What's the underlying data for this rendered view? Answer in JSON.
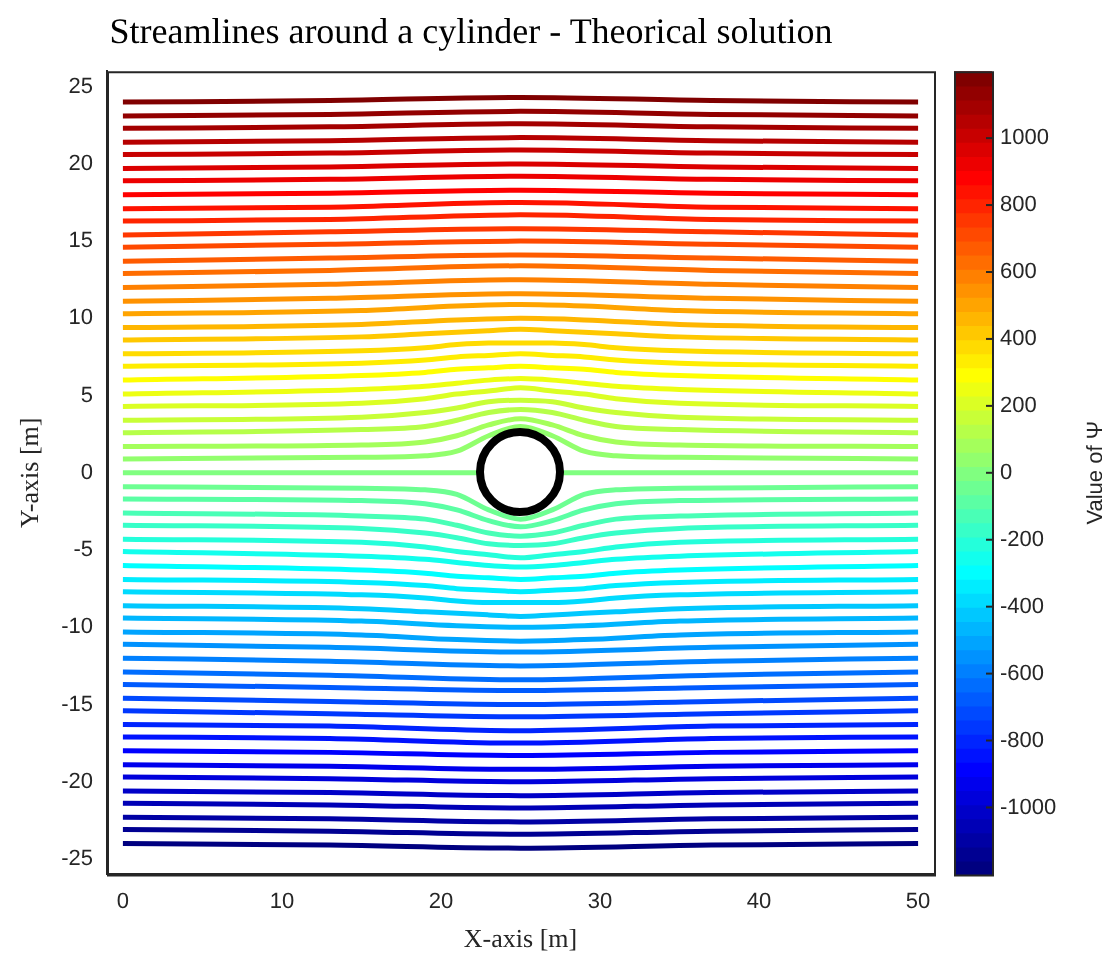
{
  "chart_data": {
    "type": "line",
    "title": "Streamlines around a cylinder - Theorical solution",
    "xlabel": "X-axis [m]",
    "ylabel": "Y-axis [m]",
    "clabel": "Value of Ψ",
    "clim": [
      -1200,
      1200
    ],
    "cticks": [
      -1000,
      -800,
      -600,
      -400,
      -200,
      0,
      200,
      400,
      600,
      800,
      1000
    ],
    "xlim": [
      -1,
      51
    ],
    "ylim": [
      -26,
      26
    ],
    "xticks": [
      0,
      10,
      20,
      30,
      40,
      50
    ],
    "yticks": [
      -25,
      -20,
      -15,
      -10,
      -5,
      0,
      5,
      10,
      15,
      20,
      25
    ],
    "legend": false,
    "grid": false,
    "series": [
      {
        "color": "#000080",
        "x": [
          0,
          13,
          25,
          37,
          50
        ],
        "values": [
          -24,
          -24.1,
          -24.3,
          -24.1,
          -24
        ]
      },
      {
        "color": "#000092",
        "x": [
          0,
          13,
          25,
          37,
          50
        ],
        "values": [
          -23.1,
          -23.2,
          -23.4,
          -23.2,
          -23.1
        ]
      },
      {
        "color": "#0000a4",
        "x": [
          0,
          13,
          25,
          37,
          50
        ],
        "values": [
          -22.3,
          -22.4,
          -22.6,
          -22.4,
          -22.3
        ]
      },
      {
        "color": "#0000b6",
        "x": [
          0,
          13,
          25,
          37,
          50
        ],
        "values": [
          -21.4,
          -21.5,
          -21.7,
          -21.5,
          -21.4
        ]
      },
      {
        "color": "#0000c8",
        "x": [
          0,
          13,
          25,
          37,
          50
        ],
        "values": [
          -20.6,
          -20.7,
          -20.9,
          -20.7,
          -20.6
        ]
      },
      {
        "color": "#0000db",
        "x": [
          0,
          13,
          25,
          37,
          50
        ],
        "values": [
          -19.7,
          -19.8,
          -20.0,
          -19.8,
          -19.7
        ]
      },
      {
        "color": "#0000ed",
        "x": [
          0,
          13,
          25,
          37,
          50
        ],
        "values": [
          -18.9,
          -19.0,
          -19.2,
          -19.0,
          -18.9
        ]
      },
      {
        "color": "#0000ff",
        "x": [
          0,
          13,
          25,
          37,
          50
        ],
        "values": [
          -18,
          -18.1,
          -18.3,
          -18.1,
          -18
        ]
      },
      {
        "color": "#0012ff",
        "x": [
          0,
          13,
          25,
          37,
          50
        ],
        "values": [
          -17.1,
          -17.2,
          -17.5,
          -17.2,
          -17.1
        ]
      },
      {
        "color": "#0024ff",
        "x": [
          0,
          13,
          25,
          37,
          50
        ],
        "values": [
          -16.3,
          -16.4,
          -16.7,
          -16.4,
          -16.3
        ]
      },
      {
        "color": "#0037ff",
        "x": [
          0,
          13,
          25,
          37,
          50
        ],
        "values": [
          -15.4,
          -15.6,
          -15.8,
          -15.6,
          -15.4
        ]
      },
      {
        "color": "#0049ff",
        "x": [
          0,
          13,
          25,
          37,
          50
        ],
        "values": [
          -14.6,
          -14.8,
          -15.0,
          -14.8,
          -14.6
        ]
      },
      {
        "color": "#005bff",
        "x": [
          0,
          13,
          25,
          37,
          50
        ],
        "values": [
          -13.7,
          -13.9,
          -14.1,
          -13.9,
          -13.7
        ]
      },
      {
        "color": "#006dff",
        "x": [
          0,
          13,
          25,
          37,
          50
        ],
        "values": [
          -12.9,
          -13.1,
          -13.4,
          -13.1,
          -12.9
        ]
      },
      {
        "color": "#0080ff",
        "x": [
          0,
          13,
          25,
          37,
          50
        ],
        "values": [
          -12,
          -12.2,
          -12.5,
          -12.2,
          -12
        ]
      },
      {
        "color": "#0092ff",
        "x": [
          0,
          13,
          25,
          37,
          50
        ],
        "values": [
          -11.1,
          -11.3,
          -11.6,
          -11.3,
          -11.1
        ]
      },
      {
        "color": "#00a4ff",
        "x": [
          0,
          15,
          21,
          25,
          29,
          35,
          50
        ],
        "values": [
          -10.3,
          -10.5,
          -10.8,
          -10.9,
          -10.8,
          -10.5,
          -10.3
        ]
      },
      {
        "color": "#00b6ff",
        "x": [
          0,
          15,
          21,
          25,
          29,
          35,
          50
        ],
        "values": [
          -9.4,
          -9.6,
          -9.9,
          -10.0,
          -9.9,
          -9.6,
          -9.4
        ]
      },
      {
        "color": "#00c8ff",
        "x": [
          0,
          15,
          19,
          21,
          23,
          25,
          27,
          29,
          31,
          35,
          50
        ],
        "values": [
          -8.6,
          -8.8,
          -9.0,
          -9.1,
          -9.2,
          -9.3,
          -9.2,
          -9.1,
          -9.0,
          -8.8,
          -8.6
        ]
      },
      {
        "color": "#00dbff",
        "x": [
          0,
          15,
          19,
          21,
          23,
          25,
          27,
          29,
          31,
          35,
          50
        ],
        "values": [
          -7.7,
          -7.9,
          -8.1,
          -8.3,
          -8.4,
          -8.4,
          -8.4,
          -8.3,
          -8.1,
          -7.9,
          -7.7
        ]
      },
      {
        "color": "#00edff",
        "x": [
          0,
          15,
          19,
          21,
          23,
          25,
          27,
          29,
          31,
          35,
          50
        ],
        "values": [
          -6.9,
          -7.1,
          -7.3,
          -7.5,
          -7.6,
          -7.7,
          -7.6,
          -7.5,
          -7.3,
          -7.1,
          -6.9
        ]
      },
      {
        "color": "#00ffff",
        "x": [
          0,
          15,
          19,
          21,
          23,
          25,
          27,
          29,
          31,
          35,
          50
        ],
        "values": [
          -6.0,
          -6.3,
          -6.5,
          -6.7,
          -6.8,
          -6.9,
          -6.8,
          -6.7,
          -6.5,
          -6.3,
          -6.0
        ]
      },
      {
        "color": "#12ffed",
        "x": [
          0,
          15,
          19,
          21,
          23,
          25,
          27,
          29,
          31,
          35,
          50
        ],
        "values": [
          -5.1,
          -5.4,
          -5.6,
          -5.8,
          -6.0,
          -6.1,
          -6.0,
          -5.8,
          -5.6,
          -5.4,
          -5.1
        ]
      },
      {
        "color": "#24ffdb",
        "x": [
          0,
          15,
          19,
          21,
          23,
          25,
          27,
          29,
          31,
          35,
          50
        ],
        "values": [
          -4.3,
          -4.5,
          -4.8,
          -5.1,
          -5.3,
          -5.5,
          -5.3,
          -5.1,
          -4.8,
          -4.5,
          -4.3
        ]
      },
      {
        "color": "#37ffc8",
        "x": [
          0,
          15,
          19,
          21,
          23,
          25,
          27,
          29,
          31,
          35,
          50
        ],
        "values": [
          -3.4,
          -3.6,
          -3.9,
          -4.2,
          -4.6,
          -4.7,
          -4.6,
          -4.2,
          -3.9,
          -3.6,
          -3.4
        ]
      },
      {
        "color": "#49ffb6",
        "x": [
          0,
          15,
          19,
          21,
          23,
          25,
          27,
          29,
          31,
          35,
          50
        ],
        "values": [
          -2.6,
          -2.8,
          -3.0,
          -3.4,
          -3.9,
          -4.1,
          -3.9,
          -3.4,
          -3.0,
          -2.8,
          -2.6
        ]
      },
      {
        "color": "#5bffa4",
        "x": [
          0,
          15,
          19,
          21,
          23,
          25,
          27,
          29,
          31,
          35,
          50
        ],
        "values": [
          -1.7,
          -1.8,
          -2.0,
          -2.4,
          -3.1,
          -3.5,
          -3.1,
          -2.4,
          -2.0,
          -1.8,
          -1.7
        ]
      },
      {
        "color": "#6dff92",
        "x": [
          0,
          15,
          19,
          21,
          23,
          25,
          27,
          29,
          31,
          35,
          50
        ],
        "values": [
          -0.9,
          -1.0,
          -1.1,
          -1.4,
          -2.4,
          -3.0,
          -2.4,
          -1.4,
          -1.1,
          -1.0,
          -0.9
        ]
      },
      {
        "color": "#80ff80",
        "x": [
          0,
          22.5,
          25,
          27.5,
          50
        ],
        "values": [
          0,
          0,
          null,
          0,
          0
        ]
      },
      {
        "color": "#92ff6d",
        "x": [
          0,
          15,
          19,
          21,
          23,
          25,
          27,
          29,
          31,
          35,
          50
        ],
        "values": [
          0.9,
          1.0,
          1.1,
          1.4,
          2.4,
          3.0,
          2.4,
          1.4,
          1.1,
          1.0,
          0.9
        ]
      },
      {
        "color": "#a4ff5b",
        "x": [
          0,
          15,
          19,
          21,
          23,
          25,
          27,
          29,
          31,
          35,
          50
        ],
        "values": [
          1.7,
          1.8,
          2.0,
          2.4,
          3.1,
          3.5,
          3.1,
          2.4,
          2.0,
          1.8,
          1.7
        ]
      },
      {
        "color": "#b6ff49",
        "x": [
          0,
          15,
          19,
          21,
          23,
          25,
          27,
          29,
          31,
          35,
          50
        ],
        "values": [
          2.6,
          2.8,
          3.0,
          3.4,
          3.9,
          4.1,
          3.9,
          3.4,
          3.0,
          2.8,
          2.6
        ]
      },
      {
        "color": "#c8ff37",
        "x": [
          0,
          15,
          19,
          21,
          23,
          25,
          27,
          29,
          31,
          35,
          50
        ],
        "values": [
          3.4,
          3.6,
          3.9,
          4.2,
          4.6,
          4.7,
          4.6,
          4.2,
          3.9,
          3.6,
          3.4
        ]
      },
      {
        "color": "#dbff24",
        "x": [
          0,
          15,
          19,
          21,
          23,
          25,
          27,
          29,
          31,
          35,
          50
        ],
        "values": [
          4.3,
          4.5,
          4.8,
          5.1,
          5.3,
          5.5,
          5.3,
          5.1,
          4.8,
          4.5,
          4.3
        ]
      },
      {
        "color": "#edff12",
        "x": [
          0,
          15,
          19,
          21,
          23,
          25,
          27,
          29,
          31,
          35,
          50
        ],
        "values": [
          5.1,
          5.4,
          5.6,
          5.8,
          6.0,
          6.1,
          6.0,
          5.8,
          5.6,
          5.4,
          5.1
        ]
      },
      {
        "color": "#ffff00",
        "x": [
          0,
          15,
          19,
          21,
          23,
          25,
          27,
          29,
          31,
          35,
          50
        ],
        "values": [
          6.0,
          6.3,
          6.5,
          6.7,
          6.8,
          6.9,
          6.8,
          6.7,
          6.5,
          6.3,
          6.0
        ]
      },
      {
        "color": "#ffed00",
        "x": [
          0,
          15,
          19,
          21,
          23,
          25,
          27,
          29,
          31,
          35,
          50
        ],
        "values": [
          6.9,
          7.1,
          7.3,
          7.5,
          7.6,
          7.7,
          7.6,
          7.5,
          7.3,
          7.1,
          6.9
        ]
      },
      {
        "color": "#ffdb00",
        "x": [
          0,
          15,
          19,
          21,
          23,
          25,
          27,
          29,
          31,
          35,
          50
        ],
        "values": [
          7.7,
          7.9,
          8.1,
          8.3,
          8.4,
          8.4,
          8.4,
          8.3,
          8.1,
          7.9,
          7.7
        ]
      },
      {
        "color": "#ffc800",
        "x": [
          0,
          15,
          19,
          21,
          23,
          25,
          27,
          29,
          31,
          35,
          50
        ],
        "values": [
          8.6,
          8.8,
          9.0,
          9.1,
          9.2,
          9.3,
          9.2,
          9.1,
          9.0,
          8.8,
          8.6
        ]
      },
      {
        "color": "#ffb600",
        "x": [
          0,
          15,
          21,
          25,
          29,
          35,
          50
        ],
        "values": [
          9.4,
          9.6,
          9.9,
          10.0,
          9.9,
          9.6,
          9.4
        ]
      },
      {
        "color": "#ffa400",
        "x": [
          0,
          15,
          21,
          25,
          29,
          35,
          50
        ],
        "values": [
          10.3,
          10.5,
          10.8,
          10.9,
          10.8,
          10.5,
          10.3
        ]
      },
      {
        "color": "#ff9200",
        "x": [
          0,
          13,
          25,
          37,
          50
        ],
        "values": [
          11.1,
          11.3,
          11.6,
          11.3,
          11.1
        ]
      },
      {
        "color": "#ff8000",
        "x": [
          0,
          13,
          25,
          37,
          50
        ],
        "values": [
          12,
          12.2,
          12.5,
          12.2,
          12
        ]
      },
      {
        "color": "#ff6d00",
        "x": [
          0,
          13,
          25,
          37,
          50
        ],
        "values": [
          12.9,
          13.1,
          13.4,
          13.1,
          12.9
        ]
      },
      {
        "color": "#ff5b00",
        "x": [
          0,
          13,
          25,
          37,
          50
        ],
        "values": [
          13.7,
          13.9,
          14.1,
          13.9,
          13.7
        ]
      },
      {
        "color": "#ff4900",
        "x": [
          0,
          13,
          25,
          37,
          50
        ],
        "values": [
          14.6,
          14.8,
          15.0,
          14.8,
          14.6
        ]
      },
      {
        "color": "#ff3700",
        "x": [
          0,
          13,
          25,
          37,
          50
        ],
        "values": [
          15.4,
          15.6,
          15.8,
          15.6,
          15.4
        ]
      },
      {
        "color": "#ff2400",
        "x": [
          0,
          13,
          25,
          37,
          50
        ],
        "values": [
          16.3,
          16.4,
          16.7,
          16.4,
          16.3
        ]
      },
      {
        "color": "#ff1200",
        "x": [
          0,
          13,
          25,
          37,
          50
        ],
        "values": [
          17.1,
          17.2,
          17.5,
          17.2,
          17.1
        ]
      },
      {
        "color": "#ff0000",
        "x": [
          0,
          13,
          25,
          37,
          50
        ],
        "values": [
          18,
          18.1,
          18.3,
          18.1,
          18
        ]
      },
      {
        "color": "#ed0000",
        "x": [
          0,
          13,
          25,
          37,
          50
        ],
        "values": [
          18.9,
          19.0,
          19.2,
          19.0,
          18.9
        ]
      },
      {
        "color": "#db0000",
        "x": [
          0,
          13,
          25,
          37,
          50
        ],
        "values": [
          19.7,
          19.8,
          20.0,
          19.8,
          19.7
        ]
      },
      {
        "color": "#c80000",
        "x": [
          0,
          13,
          25,
          37,
          50
        ],
        "values": [
          20.6,
          20.7,
          20.9,
          20.7,
          20.6
        ]
      },
      {
        "color": "#b60000",
        "x": [
          0,
          13,
          25,
          37,
          50
        ],
        "values": [
          21.4,
          21.5,
          21.7,
          21.5,
          21.4
        ]
      },
      {
        "color": "#a40000",
        "x": [
          0,
          13,
          25,
          37,
          50
        ],
        "values": [
          22.3,
          22.4,
          22.6,
          22.4,
          22.3
        ]
      },
      {
        "color": "#920000",
        "x": [
          0,
          13,
          25,
          37,
          50
        ],
        "values": [
          23.1,
          23.2,
          23.4,
          23.2,
          23.1
        ]
      },
      {
        "color": "#800000",
        "x": [
          0,
          13,
          25,
          37,
          50
        ],
        "values": [
          24,
          24.1,
          24.3,
          24.1,
          24
        ]
      }
    ]
  }
}
